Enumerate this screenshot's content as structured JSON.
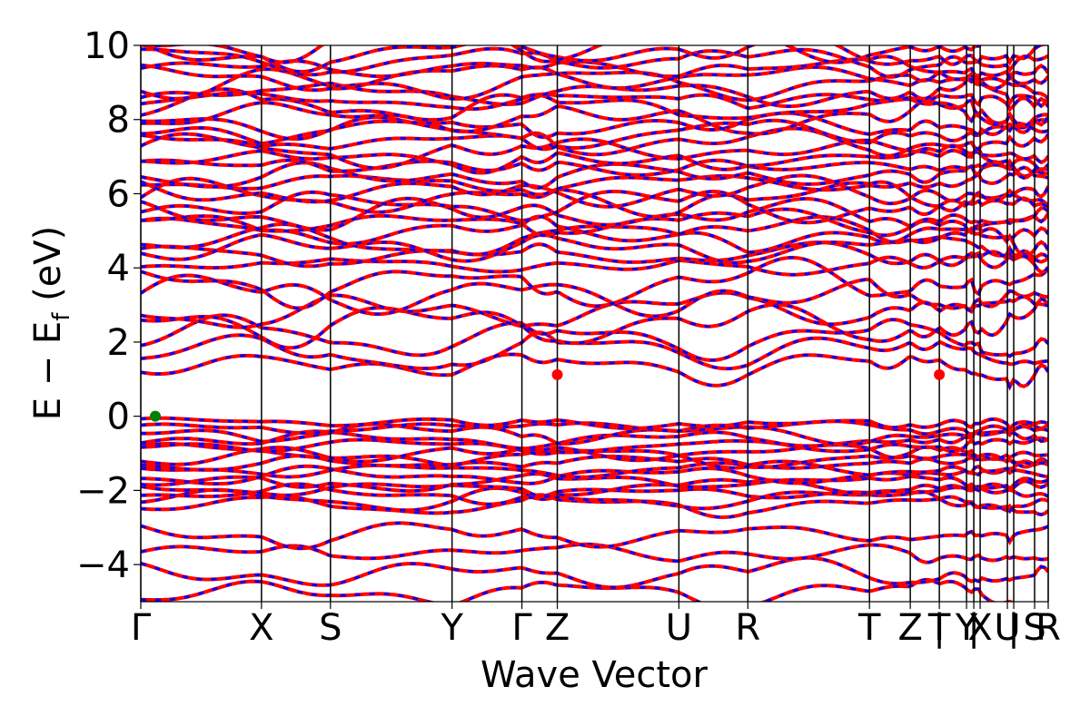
{
  "chart_data": {
    "type": "line",
    "title": "",
    "xlabel": "Wave Vector",
    "ylabel_main": "E − E",
    "ylabel_sub": "f",
    "ylabel_unit": " (eV)",
    "ylim": [
      -5,
      10
    ],
    "yticks": [
      10,
      8,
      6,
      4,
      2,
      0,
      -2,
      -4
    ],
    "ytick_labels": [
      "10",
      "8",
      "6",
      "4",
      "2",
      "0",
      "−2",
      "−4"
    ],
    "xlim": [
      0,
      1
    ],
    "kpoints": [
      {
        "label": "Γ",
        "x": 0.0
      },
      {
        "label": "X",
        "x": 0.133
      },
      {
        "label": "S",
        "x": 0.209
      },
      {
        "label": "Y",
        "x": 0.343
      },
      {
        "label": "Γ",
        "x": 0.42
      },
      {
        "label": "Z",
        "x": 0.459
      },
      {
        "label": "U",
        "x": 0.593
      },
      {
        "label": "R",
        "x": 0.669
      },
      {
        "label": "T",
        "x": 0.803
      },
      {
        "label": "Z",
        "x": 0.848
      },
      {
        "label": "|",
        "x": 0.88
      },
      {
        "label": "T",
        "x": 0.88
      },
      {
        "label": "Y",
        "x": 0.91
      },
      {
        "label": "|",
        "x": 0.918
      },
      {
        "label": "X",
        "x": 0.925
      },
      {
        "label": "U",
        "x": 0.955
      },
      {
        "label": "|",
        "x": 0.962
      },
      {
        "label": "S",
        "x": 0.985
      },
      {
        "label": "R",
        "x": 1.0
      }
    ],
    "series_colors": {
      "spin_up": "#ff0000",
      "spin_down": "#0000ff"
    },
    "band_extrema": [
      {
        "kind": "vbm",
        "x": 0.016,
        "y": 0.0,
        "color": "#008000"
      },
      {
        "kind": "cbm",
        "x": 0.459,
        "y": 1.12,
        "color": "#ff0000"
      },
      {
        "kind": "cbm",
        "x": 0.88,
        "y": 1.12,
        "color": "#ff0000"
      }
    ],
    "grid": false,
    "legend": "none"
  }
}
